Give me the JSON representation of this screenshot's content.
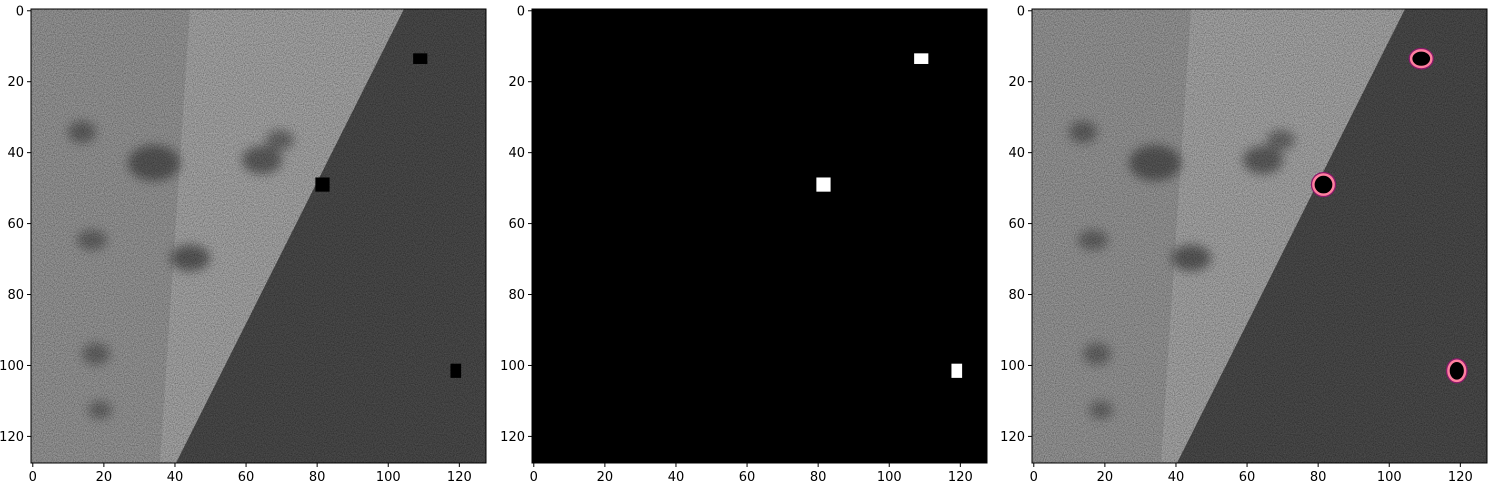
{
  "figure": {
    "panels": [
      {
        "id": "input-image",
        "content": "grayscale noisy texture image with bright left region and dark right region separated by a diagonal edge; three small black blobs",
        "colormap": "gray"
      },
      {
        "id": "binary-mask",
        "content": "black background with three small white blobs",
        "colormap": "binary"
      },
      {
        "id": "overlay",
        "content": "input image with pink/magenta contours outlining the three blobs",
        "contour_color": "#ff7f9f",
        "contour_edge_color": "#8b1a6b"
      }
    ],
    "axes": {
      "x_ticks": [
        "0",
        "20",
        "40",
        "60",
        "80",
        "100",
        "120"
      ],
      "y_ticks": [
        "0",
        "20",
        "40",
        "60",
        "80",
        "100",
        "120"
      ],
      "xlim": [
        0,
        128
      ],
      "ylim": [
        128,
        0
      ]
    },
    "blobs": [
      {
        "x": 109,
        "y": 13.5,
        "w": 4,
        "h": 3
      },
      {
        "x": 81.5,
        "y": 49,
        "w": 4,
        "h": 4
      },
      {
        "x": 119,
        "y": 101.5,
        "w": 3,
        "h": 4
      }
    ]
  }
}
